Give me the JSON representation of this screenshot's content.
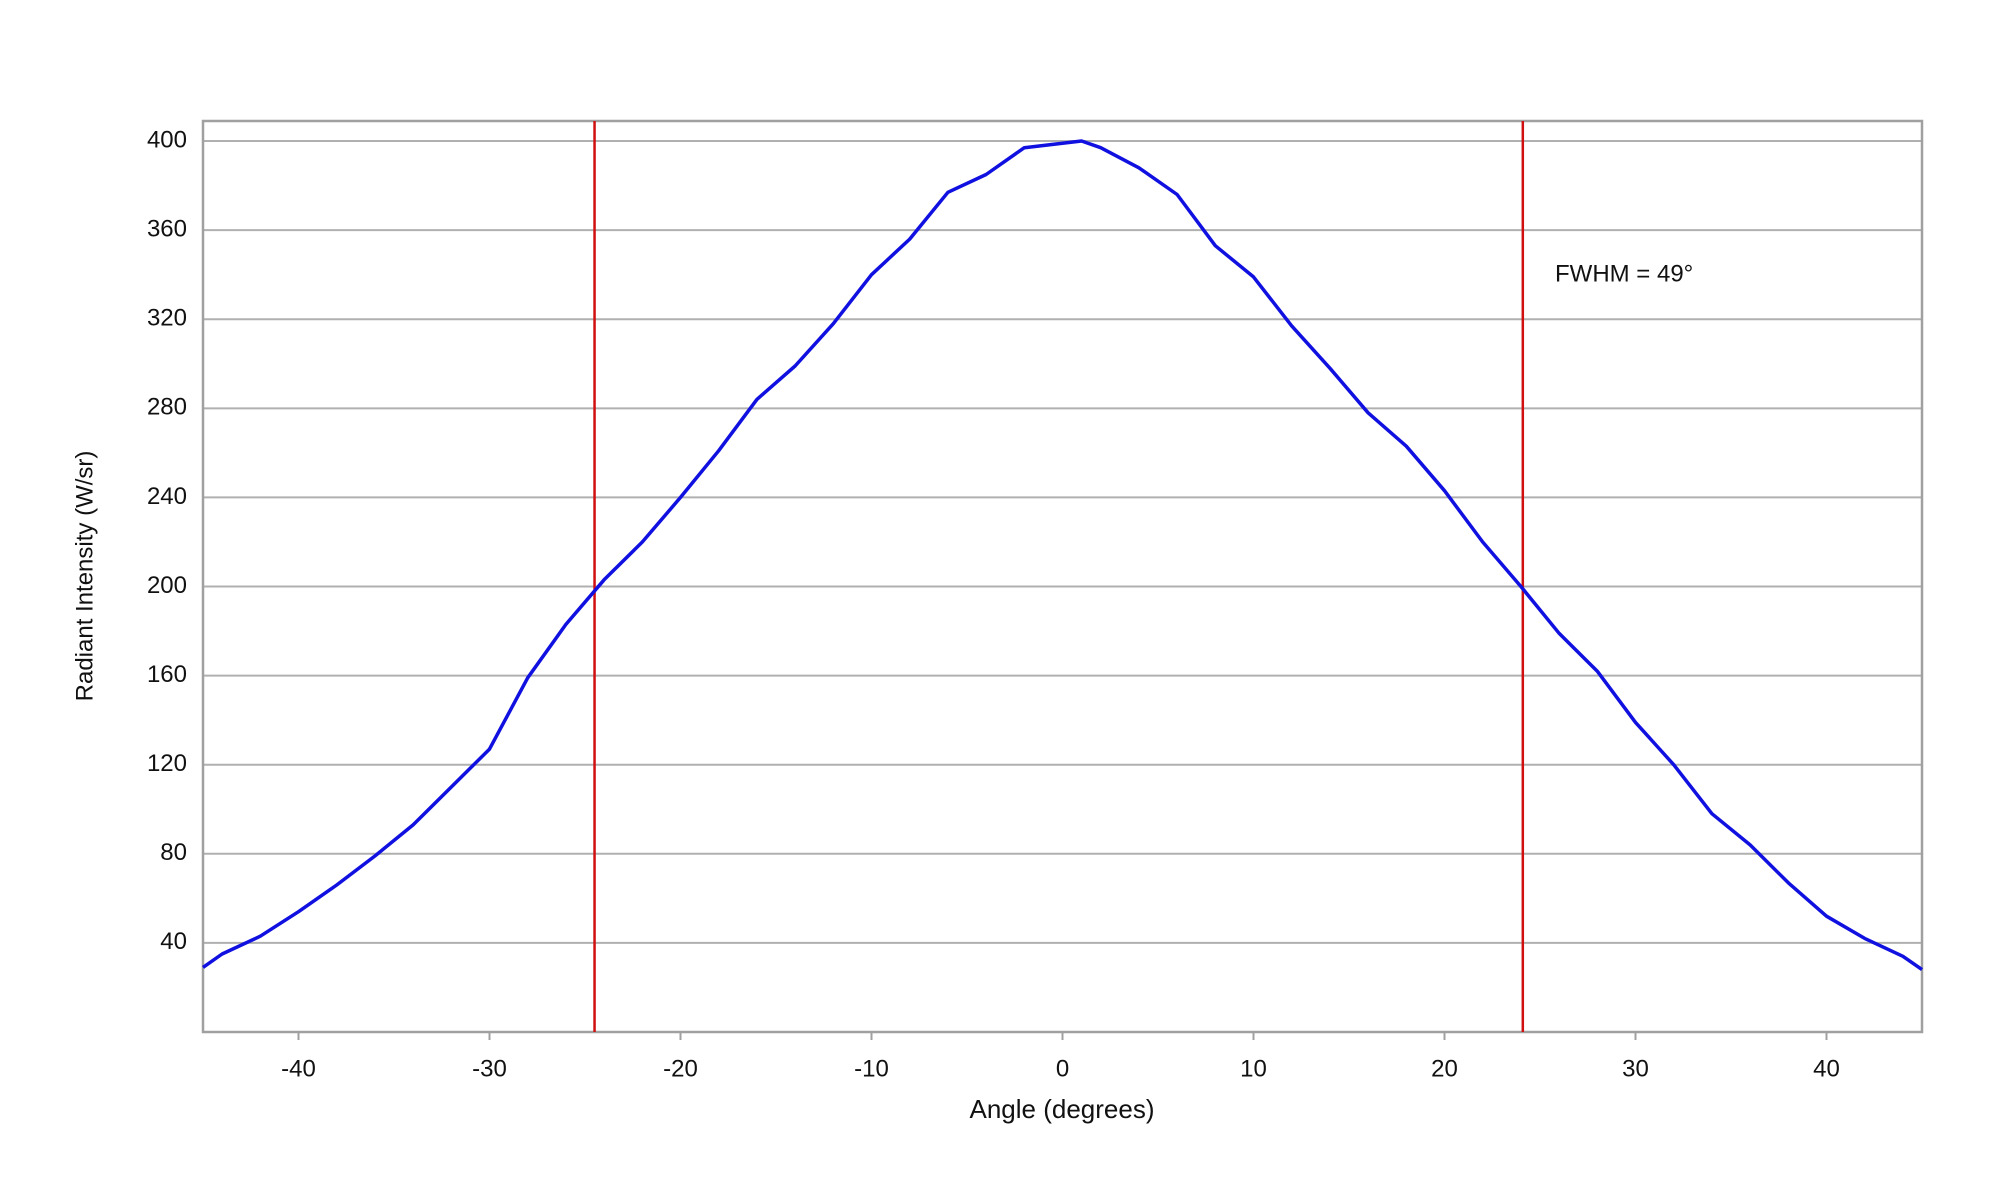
{
  "chart_data": {
    "type": "line",
    "xlabel": "Angle (degrees)",
    "ylabel": "Radiant Intensity (W/sr)",
    "annotation": "FWHM = 49°",
    "x": [
      -45,
      -44,
      -42,
      -40,
      -38,
      -36,
      -34,
      -32,
      -30,
      -28,
      -26,
      -24,
      -22,
      -20,
      -18,
      -16,
      -14,
      -12,
      -10,
      -8,
      -6,
      -4,
      -2,
      0,
      1,
      2,
      4,
      6,
      8,
      10,
      12,
      14,
      16,
      18,
      20,
      22,
      24,
      26,
      28,
      30,
      32,
      34,
      36,
      38,
      40,
      42,
      44,
      45
    ],
    "values": [
      29,
      35,
      43,
      54,
      66,
      79,
      93,
      110,
      127,
      159,
      183,
      203,
      220,
      240,
      261,
      284,
      299,
      318,
      340,
      356,
      377,
      385,
      397,
      399,
      400,
      397,
      388,
      376,
      353,
      339,
      317,
      298,
      278,
      263,
      243,
      220,
      200,
      179,
      162,
      139,
      120,
      98,
      84,
      67,
      52,
      42,
      34,
      28
    ],
    "color": "#1010e0",
    "vlines": [
      {
        "x": -24.5,
        "color": "#d01010"
      },
      {
        "x": 24.1,
        "color": "#d01010"
      }
    ],
    "xlim": [
      -45,
      45
    ],
    "xticks": [
      -40,
      -30,
      -20,
      -10,
      0,
      10,
      20,
      30,
      40
    ],
    "ylim": [
      0,
      409
    ],
    "yticks": [
      40,
      80,
      120,
      160,
      200,
      240,
      280,
      320,
      360,
      400
    ],
    "grid": true
  }
}
